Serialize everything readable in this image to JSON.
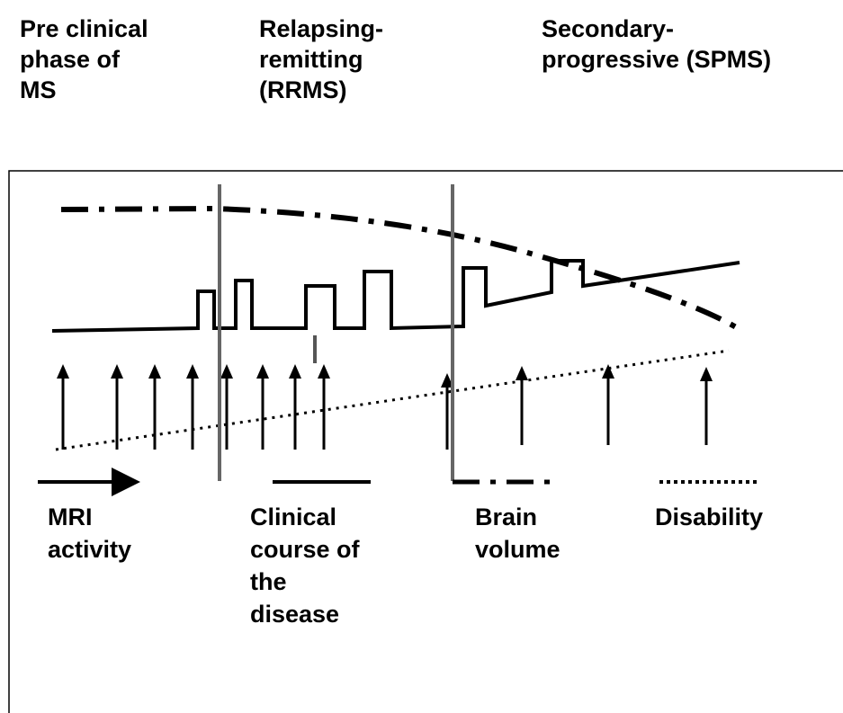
{
  "phases": [
    {
      "lines": [
        "Pre clinical",
        "phase of",
        "MS"
      ]
    },
    {
      "lines": [
        "Relapsing-",
        "remitting",
        "(RRMS)"
      ]
    },
    {
      "lines": [
        "Secondary-",
        "progressive (SPMS)"
      ]
    }
  ],
  "legend": [
    {
      "lines": [
        "MRI",
        "activity"
      ]
    },
    {
      "lines": [
        "Clinical",
        "course of",
        "the",
        "disease"
      ]
    },
    {
      "lines": [
        "Brain",
        "volume"
      ]
    },
    {
      "lines": [
        "Disability"
      ]
    }
  ]
}
